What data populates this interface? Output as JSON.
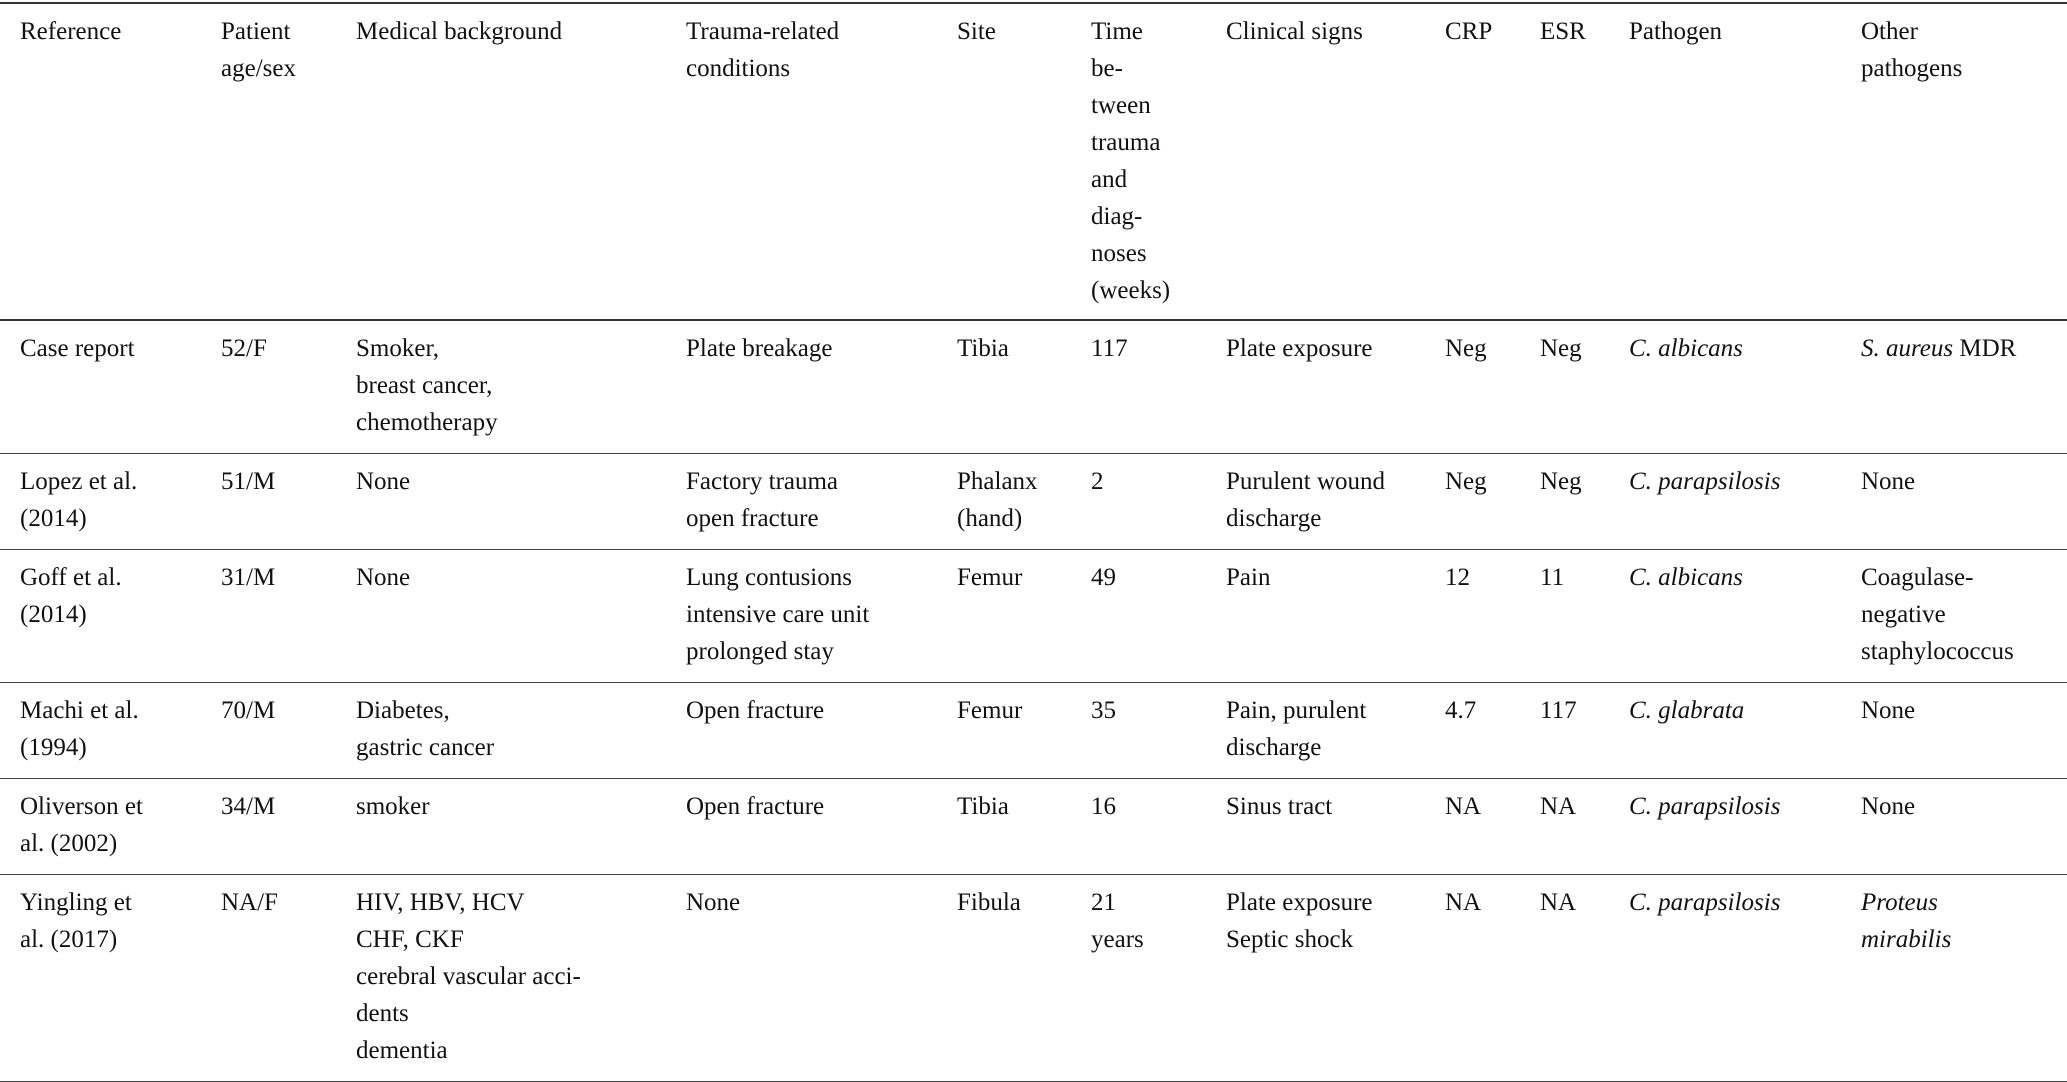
{
  "table": {
    "columns": [
      "Reference",
      "Patient\nage/sex",
      "Medical background",
      "Trauma-related\nconditions",
      "Site",
      "Time\nbe-\ntween\ntrauma\nand\ndiag-\nnoses\n(weeks)",
      "Clinical signs",
      "CRP",
      "ESR",
      "Pathogen",
      "Other\npathogens"
    ],
    "rows": [
      [
        [
          {
            "t": "Case report"
          }
        ],
        [
          {
            "t": "52/F"
          }
        ],
        [
          {
            "t": "Smoker,\nbreast cancer,\nchemotherapy"
          }
        ],
        [
          {
            "t": "Plate breakage"
          }
        ],
        [
          {
            "t": "Tibia"
          }
        ],
        [
          {
            "t": "117"
          }
        ],
        [
          {
            "t": "Plate exposure"
          }
        ],
        [
          {
            "t": "Neg"
          }
        ],
        [
          {
            "t": "Neg"
          }
        ],
        [
          {
            "t": "C. albicans",
            "i": true
          }
        ],
        [
          {
            "t": "S. aureus",
            "i": true
          },
          {
            "t": " MDR"
          }
        ]
      ],
      [
        [
          {
            "t": "Lopez et al.\n(2014)"
          }
        ],
        [
          {
            "t": "51/M"
          }
        ],
        [
          {
            "t": "None"
          }
        ],
        [
          {
            "t": "Factory trauma\nopen fracture"
          }
        ],
        [
          {
            "t": "Phalanx\n(hand)"
          }
        ],
        [
          {
            "t": "2"
          }
        ],
        [
          {
            "t": "Purulent wound\ndischarge"
          }
        ],
        [
          {
            "t": "Neg"
          }
        ],
        [
          {
            "t": "Neg"
          }
        ],
        [
          {
            "t": "C. parapsilosis",
            "i": true
          }
        ],
        [
          {
            "t": "None"
          }
        ]
      ],
      [
        [
          {
            "t": "Goff et al.\n(2014)"
          }
        ],
        [
          {
            "t": "31/M"
          }
        ],
        [
          {
            "t": "None"
          }
        ],
        [
          {
            "t": "Lung contusions\nintensive  care  unit\nprolonged stay"
          }
        ],
        [
          {
            "t": "Femur"
          }
        ],
        [
          {
            "t": "49"
          }
        ],
        [
          {
            "t": "Pain"
          }
        ],
        [
          {
            "t": "12"
          }
        ],
        [
          {
            "t": "11"
          }
        ],
        [
          {
            "t": "C. albicans",
            "i": true
          }
        ],
        [
          {
            "t": "Coagulase-\nnegative\nstaphylococcus"
          }
        ]
      ],
      [
        [
          {
            "t": "Machi et al.\n(1994)"
          }
        ],
        [
          {
            "t": "70/M"
          }
        ],
        [
          {
            "t": "Diabetes,\ngastric cancer"
          }
        ],
        [
          {
            "t": "Open fracture"
          }
        ],
        [
          {
            "t": "Femur"
          }
        ],
        [
          {
            "t": "35"
          }
        ],
        [
          {
            "t": "Pain,    purulent\ndischarge"
          }
        ],
        [
          {
            "t": "4.7"
          }
        ],
        [
          {
            "t": "117"
          }
        ],
        [
          {
            "t": "C. glabrata",
            "i": true
          }
        ],
        [
          {
            "t": "None"
          }
        ]
      ],
      [
        [
          {
            "t": "Oliverson et\nal. (2002)"
          }
        ],
        [
          {
            "t": "34/M"
          }
        ],
        [
          {
            "t": "smoker"
          }
        ],
        [
          {
            "t": "Open fracture"
          }
        ],
        [
          {
            "t": "Tibia"
          }
        ],
        [
          {
            "t": "16"
          }
        ],
        [
          {
            "t": "Sinus tract"
          }
        ],
        [
          {
            "t": "NA"
          }
        ],
        [
          {
            "t": "NA"
          }
        ],
        [
          {
            "t": "C. parapsilosis",
            "i": true
          }
        ],
        [
          {
            "t": "None"
          }
        ]
      ],
      [
        [
          {
            "t": "Yingling et\nal. (2017)"
          }
        ],
        [
          {
            "t": "NA/F"
          }
        ],
        [
          {
            "t": "HIV, HBV, HCV\nCHF, CKF\ncerebral  vascular  acci-\ndents\ndementia"
          }
        ],
        [
          {
            "t": "None"
          }
        ],
        [
          {
            "t": "Fibula"
          }
        ],
        [
          {
            "t": "21\nyears"
          }
        ],
        [
          {
            "t": "Plate exposure\nSeptic shock"
          }
        ],
        [
          {
            "t": "NA"
          }
        ],
        [
          {
            "t": "NA"
          }
        ],
        [
          {
            "t": "C. parapsilosis",
            "i": true
          }
        ],
        [
          {
            "t": "Proteus\nmirabilis",
            "i": true
          }
        ]
      ]
    ]
  }
}
